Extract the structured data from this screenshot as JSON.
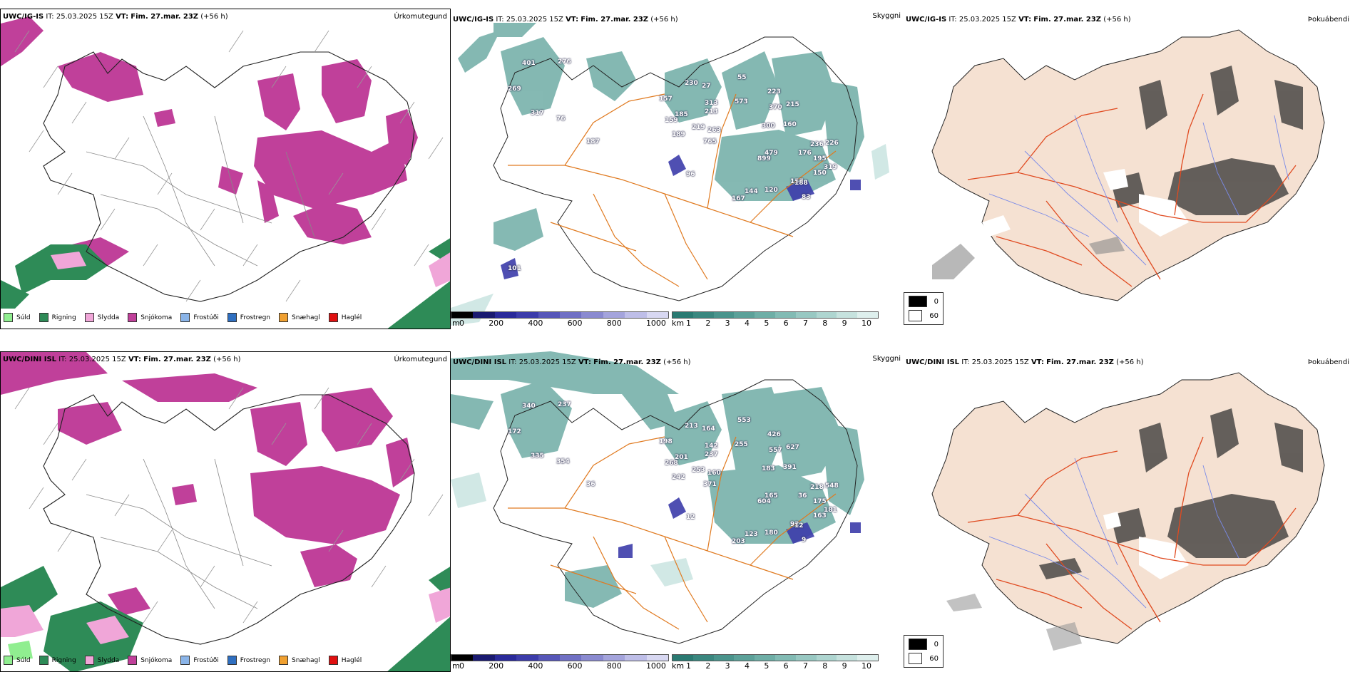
{
  "rows": [
    {
      "model": "UWC/IG-IS",
      "it_label": "IT:",
      "it_value": "25.03.2025 15Z",
      "vt_label": "VT:",
      "vt_value": "Fim. 27.mar. 23Z",
      "lead": "(+56 h)",
      "precip_title": "Úrkomutegund",
      "cloud_title": "Skyggni",
      "fog_title": "Þokuábendi",
      "peaks": [
        "401",
        "276",
        "269",
        "317",
        "76",
        "187",
        "157",
        "230",
        "27",
        "185",
        "159",
        "189",
        "313",
        "213",
        "219",
        "263",
        "765",
        "55",
        "573",
        "223",
        "370",
        "300",
        "215",
        "160",
        "479",
        "899",
        "176",
        "236",
        "226",
        "195",
        "319",
        "150",
        "157",
        "120",
        "144",
        "167",
        "83",
        "188",
        "96",
        "101"
      ]
    },
    {
      "model": "UWC/DINI ISL",
      "it_label": "IT:",
      "it_value": "25.03.2025 15Z",
      "vt_label": "VT:",
      "vt_value": "Fim. 27.mar. 23Z",
      "lead": "(+56 h)",
      "precip_title": "Úrkomutegund",
      "cloud_title": "Skyggni",
      "fog_title": "Þokuábendi",
      "peaks": [
        "340",
        "237",
        "172",
        "335",
        "354",
        "36",
        "198",
        "213",
        "164",
        "201",
        "268",
        "242",
        "142",
        "237",
        "253",
        "160",
        "371",
        "553",
        "255",
        "426",
        "557",
        "183",
        "627",
        "391",
        "165",
        "604",
        "36",
        "218",
        "548",
        "175",
        "181",
        "163",
        "92",
        "180",
        "123",
        "203",
        "9",
        "12",
        "12"
      ]
    }
  ],
  "precip_legend": [
    {
      "label": "Súld",
      "color": "#90ee90"
    },
    {
      "label": "Rigning",
      "color": "#2e8b57"
    },
    {
      "label": "Slydda",
      "color": "#f0a6d8"
    },
    {
      "label": "Snjókoma",
      "color": "#c0409a"
    },
    {
      "label": "Frostúði",
      "color": "#8ab4e8"
    },
    {
      "label": "Frostregn",
      "color": "#2f6fc0"
    },
    {
      "label": "Snæhagl",
      "color": "#f0a030"
    },
    {
      "label": "Haglél",
      "color": "#e01010"
    }
  ],
  "height_bar": {
    "unit": "m",
    "ticks": [
      "0",
      "200",
      "400",
      "600",
      "800",
      "1000"
    ],
    "colors": [
      "#000000",
      "#1a1a70",
      "#2a2a9a",
      "#3c3caa",
      "#5656b8",
      "#7070c4",
      "#8a8ad0",
      "#a4a4dc",
      "#bebee8",
      "#d8d8f2"
    ]
  },
  "cloud_bar": {
    "unit": "km",
    "ticks": [
      "1",
      "2",
      "3",
      "4",
      "5",
      "6",
      "7",
      "8",
      "9",
      "10"
    ],
    "colors": [
      "#2a7a72",
      "#3a877f",
      "#4a948c",
      "#5ca199",
      "#6eaea6",
      "#82bbb4",
      "#98c8c2",
      "#aed5d0",
      "#c6e2de",
      "#deefed"
    ]
  },
  "vis_key": [
    {
      "value": "0",
      "color": "#000000"
    },
    {
      "value": "60",
      "color": "#ffffff"
    }
  ]
}
